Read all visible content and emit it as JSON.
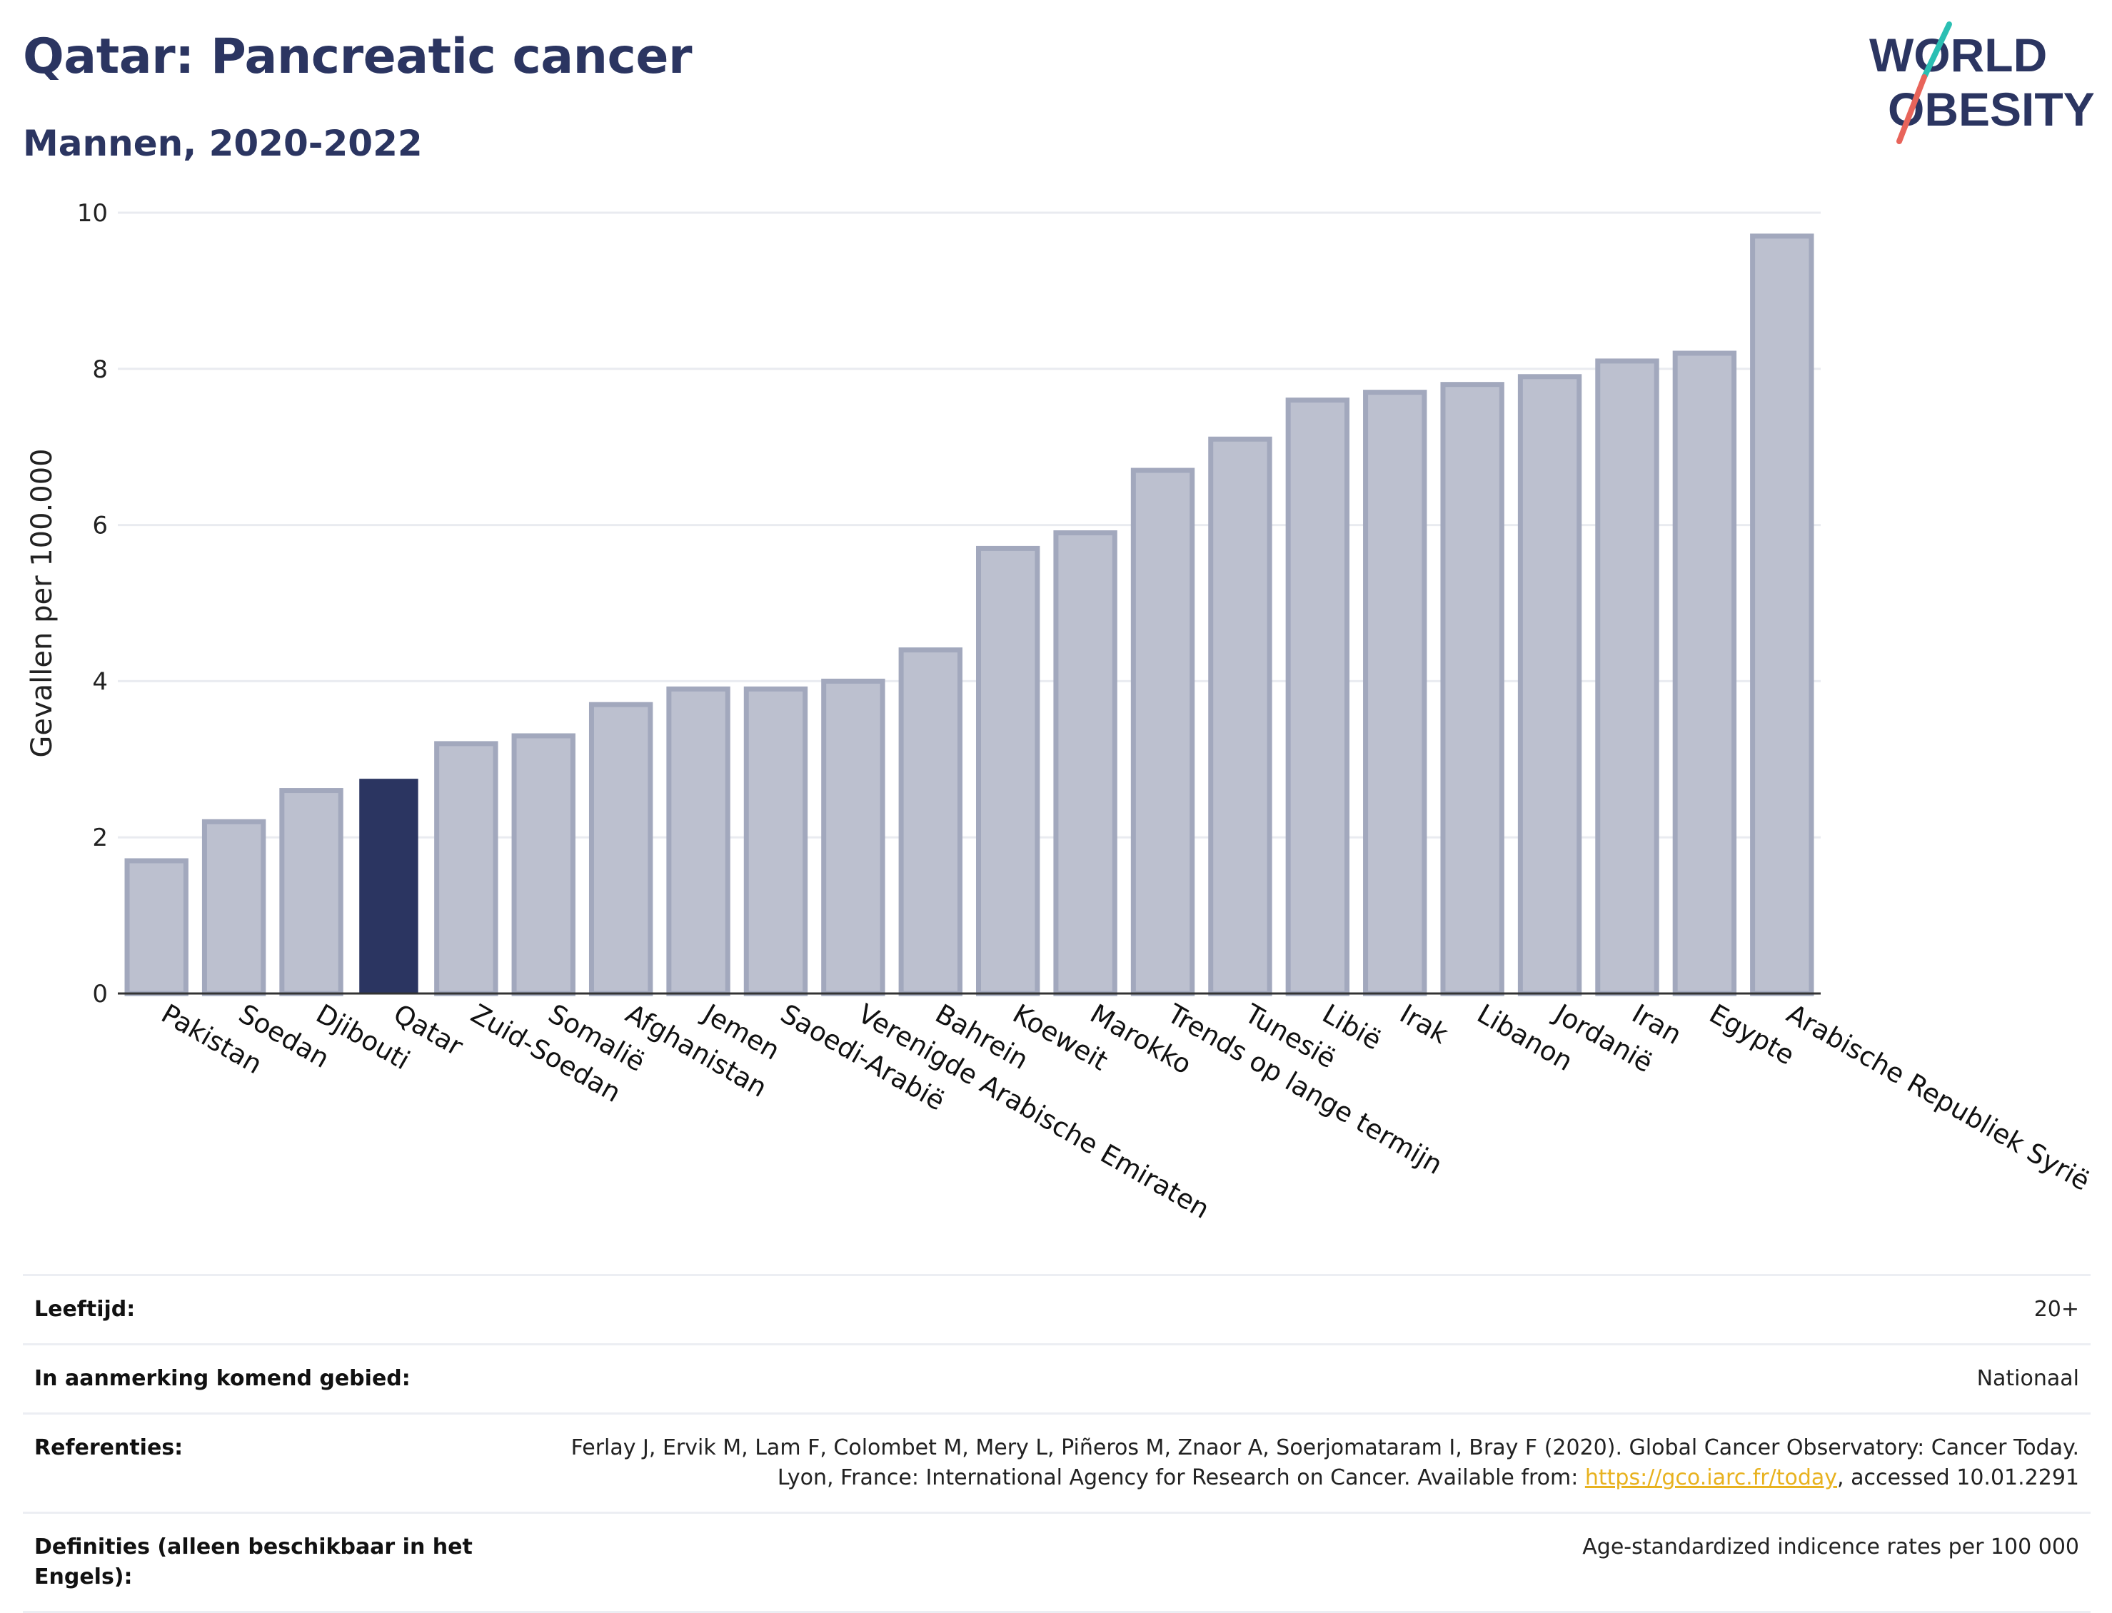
{
  "header": {
    "title": "Qatar: Pancreatic cancer",
    "subtitle": "Mannen, 2020-2022"
  },
  "logo": {
    "line1": "WORLD",
    "line2": "OBESITY",
    "colors": {
      "text": "#2b3561",
      "slash_teal": "#2bbfb3",
      "slash_red": "#e8645a"
    }
  },
  "chart_data": {
    "type": "bar",
    "ylabel": "Gevallen per 100.000",
    "xlabel": "",
    "ylim": [
      0,
      10
    ],
    "yticks": [
      0,
      2,
      4,
      6,
      8,
      10
    ],
    "grid": true,
    "highlight_category": "Qatar",
    "colors": {
      "bar": "#bcc0cf",
      "bar_border": "#a2a8bd",
      "highlight": "#2b3561",
      "grid": "#e9ebf0"
    },
    "categories": [
      "Pakistan",
      "Soedan",
      "Djibouti",
      "Qatar",
      "Zuid-Soedan",
      "Somalië",
      "Afghanistan",
      "Jemen",
      "Saoedi-Arabië",
      "Verenigde Arabische Emiraten",
      "Bahrein",
      "Koeweit",
      "Marokko",
      "Trends op lange termijn",
      "Tunesië",
      "Libië",
      "Irak",
      "Libanon",
      "Jordanië",
      "Iran",
      "Egypte",
      "Arabische Republiek Syrië"
    ],
    "values": [
      1.7,
      2.2,
      2.6,
      2.75,
      3.2,
      3.3,
      3.7,
      3.9,
      3.9,
      4.0,
      4.4,
      5.7,
      5.9,
      6.7,
      7.1,
      7.6,
      7.7,
      7.8,
      7.9,
      8.1,
      8.2,
      9.7
    ]
  },
  "meta": [
    {
      "label": "Leeftijd:",
      "value": "20+"
    },
    {
      "label": "In aanmerking komend gebied:",
      "value": "Nationaal"
    },
    {
      "label": "Referenties:",
      "value_before": "Ferlay J, Ervik M, Lam F, Colombet M, Mery L, Piñeros M, Znaor A, Soerjomataram I, Bray F (2020). Global Cancer Observatory: Cancer Today. Lyon, France: International Agency for Research on Cancer. Available from: ",
      "link": "https://gco.iarc.fr/today",
      "value_after": ", accessed 10.01.2291"
    },
    {
      "label": "Definities (alleen beschikbaar in het Engels):",
      "value": "Age-standardized indicence rates per 100 000"
    }
  ]
}
